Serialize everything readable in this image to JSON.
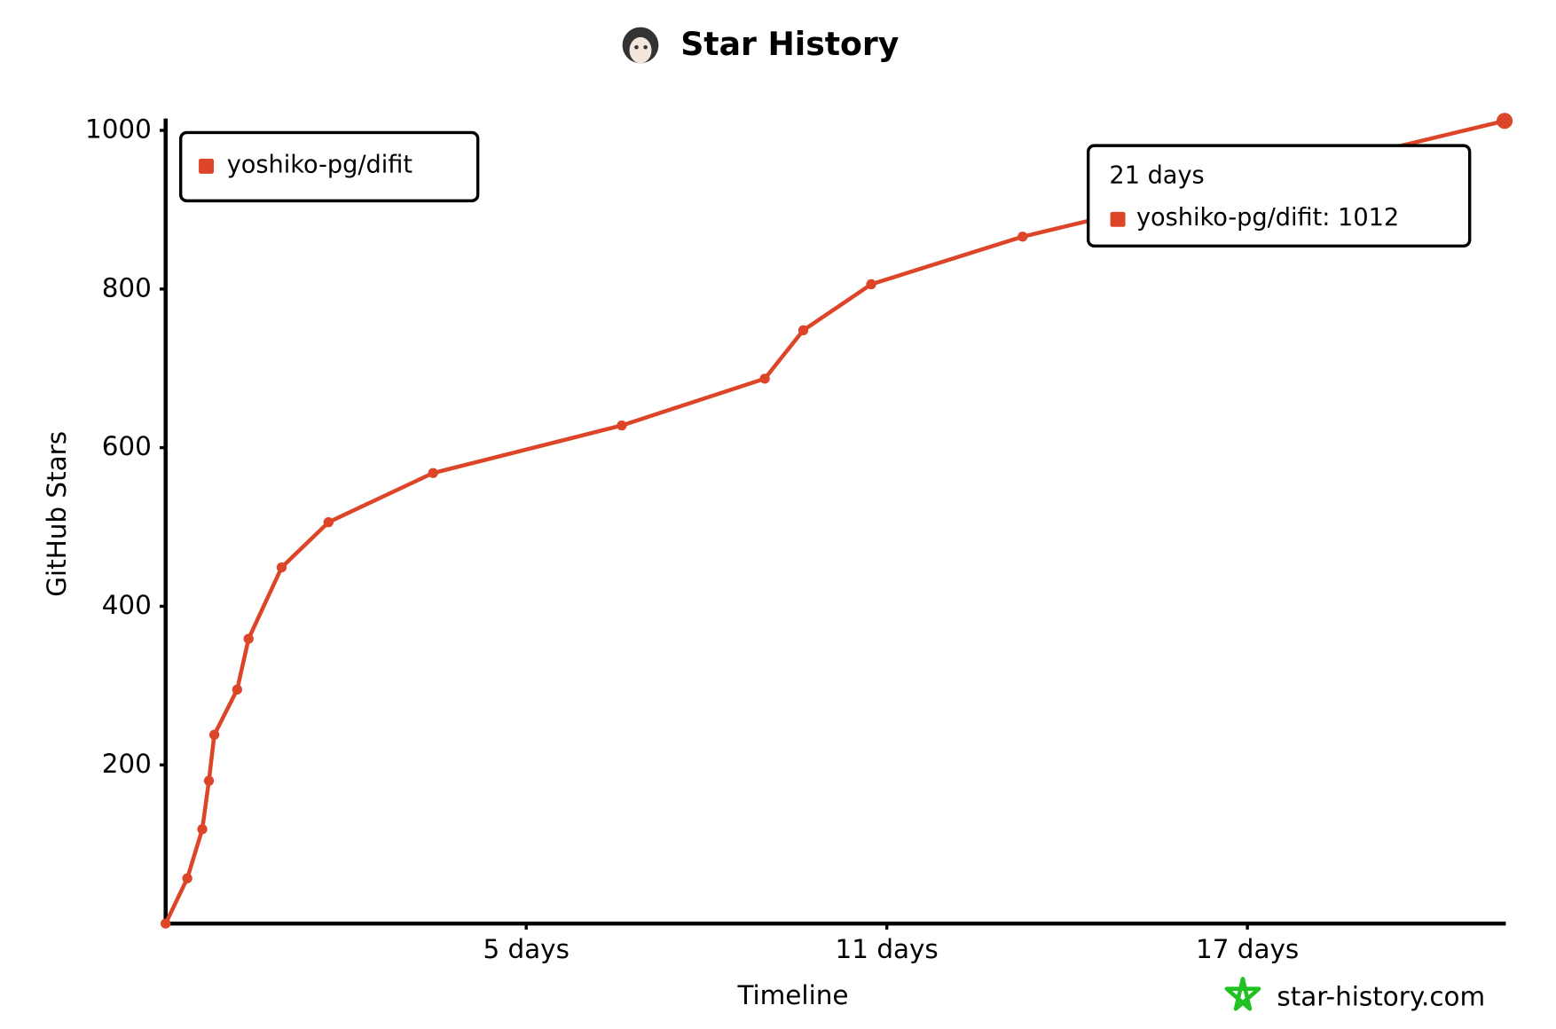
{
  "chart_data": {
    "type": "line",
    "title": "Star History",
    "x_label": "Timeline",
    "y_label": "GitHub Stars",
    "watermark": "star-history.com",
    "x": [
      -1,
      -0.64,
      -0.39,
      -0.28,
      -0.19,
      0.19,
      0.38,
      0.93,
      1.71,
      3.45,
      6.59,
      8.97,
      9.61,
      10.74,
      13.26,
      21.28
    ],
    "series": [
      {
        "name": "yoshiko-pg/difit",
        "color": "#dd4528",
        "values": [
          0,
          57,
          119,
          180,
          238,
          295,
          359,
          449,
          506,
          568,
          628,
          687,
          748,
          806,
          866,
          1012
        ]
      }
    ],
    "xlim": [
      -1,
      21.3
    ],
    "xticks": [
      {
        "value": 5,
        "label": "5 days"
      },
      {
        "value": 11,
        "label": "11 days"
      },
      {
        "value": 17,
        "label": "17 days"
      }
    ],
    "ylim": [
      0,
      1015
    ],
    "yticks": [
      200,
      400,
      600,
      800,
      1000
    ],
    "legend": "top-left",
    "tooltip": {
      "title": "21 days",
      "text": "yoshiko-pg/difit: 1012"
    }
  }
}
